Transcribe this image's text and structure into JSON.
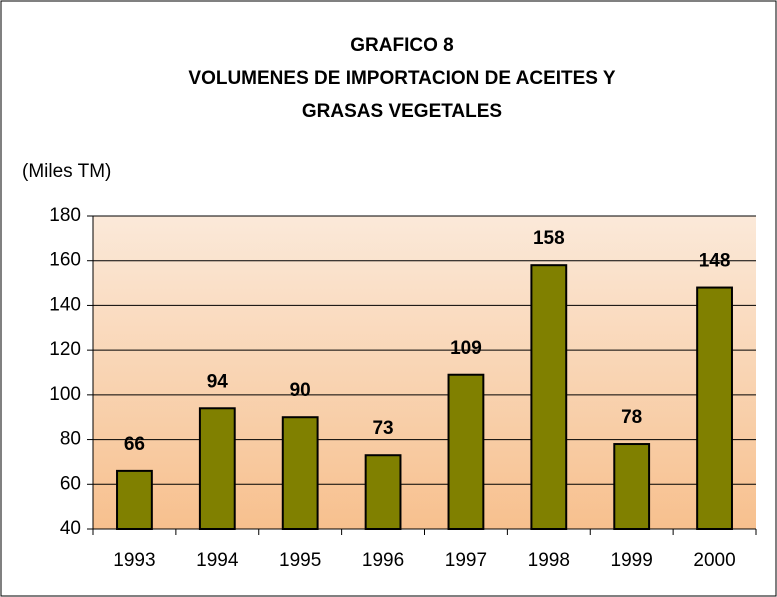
{
  "chart_data": {
    "type": "bar",
    "title": [
      "GRAFICO 8",
      "VOLUMENES DE IMPORTACION DE ACEITES Y",
      "GRASAS VEGETALES"
    ],
    "y_label": "(Miles TM)",
    "categories": [
      "1993",
      "1994",
      "1995",
      "1996",
      "1997",
      "1998",
      "1999",
      "2000"
    ],
    "values": [
      66,
      94,
      90,
      73,
      109,
      158,
      78,
      148
    ],
    "color": "#808000",
    "ylim": [
      40,
      180
    ],
    "yticks": [
      40,
      60,
      80,
      100,
      120,
      140,
      160,
      180
    ],
    "grid": true
  }
}
